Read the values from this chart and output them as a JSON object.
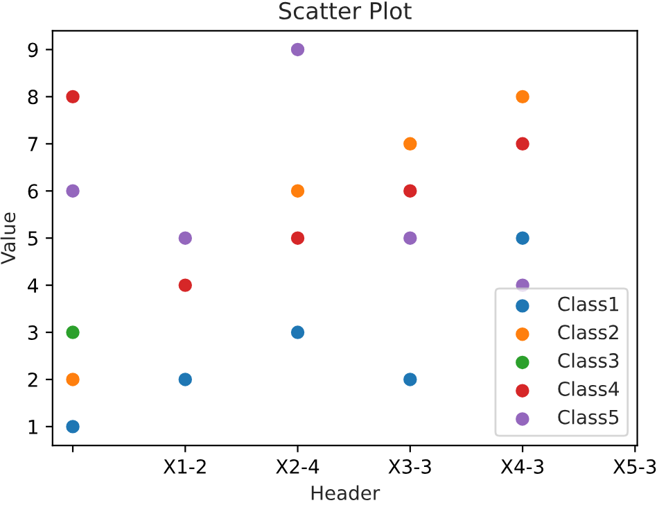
{
  "chart_data": {
    "type": "scatter",
    "title": "Scatter Plot",
    "xlabel": "Header",
    "ylabel": "Value",
    "categories": [
      null,
      "X1-2",
      "X2-4",
      "X3-3",
      "X4-3",
      "X5-3"
    ],
    "series": [
      {
        "name": "Class1",
        "color": "#1f77b4",
        "values": [
          1,
          2,
          3,
          2,
          5,
          null
        ]
      },
      {
        "name": "Class2",
        "color": "#ff7f0e",
        "values": [
          2,
          null,
          6,
          7,
          8,
          null
        ]
      },
      {
        "name": "Class3",
        "color": "#2ca02c",
        "values": [
          3,
          null,
          null,
          null,
          null,
          null
        ]
      },
      {
        "name": "Class4",
        "color": "#d62728",
        "values": [
          8,
          4,
          5,
          6,
          7,
          null
        ]
      },
      {
        "name": "Class5",
        "color": "#9467bd",
        "values": [
          6,
          5,
          9,
          5,
          4,
          null
        ]
      }
    ],
    "ylim": [
      0.6,
      9.4
    ],
    "yticks": [
      1,
      2,
      3,
      4,
      5,
      6,
      7,
      8,
      9
    ],
    "legend": "lower right",
    "grid": false,
    "marker": "circle"
  }
}
